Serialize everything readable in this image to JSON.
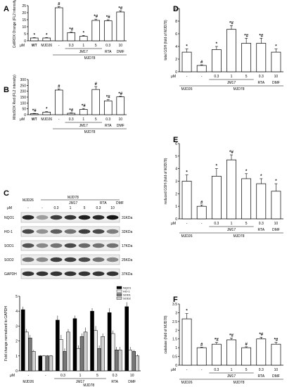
{
  "colors": {
    "bar": "#ffffff",
    "axis": "#000000",
    "blot_band": "#1a1a1a",
    "blot_bg": "#ececec"
  },
  "annotation_marks": {
    "sig_star": "*",
    "sig_hash": "#",
    "sig_both": "*#"
  },
  "treatment_row": {
    "unit": "μM",
    "doses": [
      "-",
      "-",
      "0.3",
      "1",
      "5",
      "0.3",
      "10"
    ],
    "groups": [
      "MJD26",
      "MJD78",
      "JM17",
      "RTA",
      "DMF"
    ]
  },
  "panel_labels": [
    "A",
    "B",
    "C",
    "D",
    "E",
    "F"
  ],
  "chart_data": [
    {
      "panel": "A",
      "type": "bar",
      "categories": [
        "WT",
        "MJD26",
        "MJD78",
        "JM17 0.3",
        "JM17 1",
        "JM17 5",
        "RTA 0.3",
        "DMF 10"
      ],
      "values": [
        2,
        2,
        23.5,
        5.8,
        3.2,
        14.5,
        14.2,
        20.5
      ],
      "errors": [
        0.3,
        0.3,
        0.8,
        0.5,
        0.6,
        0.9,
        0.8,
        0.8
      ],
      "annotations": [
        "*",
        "*",
        "#",
        "*#",
        "*",
        "*#",
        "*#",
        "*#"
      ],
      "ylabel": "CellROX Orange (FL2 intensity)",
      "ylim": [
        0,
        25
      ],
      "yticks": [
        0,
        5,
        10,
        15,
        20,
        25
      ],
      "xlabels": [
        "WT",
        "MJD26",
        "",
        "0.3",
        "1",
        "5",
        "0.3",
        "10"
      ]
    },
    {
      "panel": "B",
      "type": "bar",
      "categories": [
        "WT",
        "MJD26",
        "MJD78",
        "JM17 0.3",
        "JM17 1",
        "JM17 5",
        "RTA 0.3",
        "DMF 10"
      ],
      "values": [
        8,
        22,
        210,
        12,
        45,
        215,
        118,
        152
      ],
      "errors": [
        3,
        4,
        10,
        4,
        8,
        25,
        10,
        5
      ],
      "annotations": [
        "*#",
        "*",
        "#",
        "*#",
        "*#",
        "#",
        "*#",
        "*#"
      ],
      "ylabel": "MitoSOX Red (FL2 intensity)",
      "ylim": [
        0,
        300
      ],
      "yticks": [
        0,
        50,
        100,
        150,
        200,
        250,
        300
      ],
      "xlabels": [
        "WT",
        "MJD26",
        "",
        "0.3",
        "1",
        "5",
        "0.3",
        "10"
      ]
    },
    {
      "panel": "C",
      "type": "bar",
      "categories": [
        "MJD26",
        "MJD78",
        "JM17 0.3",
        "JM17 1",
        "JM17 5",
        "RTA 0.3",
        "DMF 10"
      ],
      "series": [
        {
          "name": "NQO1",
          "values": [
            4.1,
            1.0,
            3.4,
            3.5,
            4.0,
            3.9,
            4.3
          ],
          "errors": [
            0.2,
            0.05,
            0.3,
            0.2,
            0.2,
            0.3,
            0.3
          ],
          "fill": "#000000"
        },
        {
          "name": "HO-1",
          "values": [
            2.6,
            1.0,
            2.1,
            1.5,
            2.7,
            2.5,
            1.4
          ],
          "errors": [
            0.2,
            0.05,
            0.3,
            0.2,
            0.3,
            0.2,
            0.2
          ],
          "fill": "#f0f0f0"
        },
        {
          "name": "SOD1",
          "values": [
            2.2,
            1.0,
            1.3,
            2.3,
            1.5,
            1.4,
            1.3
          ],
          "errors": [
            0.2,
            0.05,
            0.2,
            0.2,
            0.2,
            0.2,
            0.1
          ],
          "fill": "#777777"
        },
        {
          "name": "SOD2",
          "values": [
            1.3,
            1.0,
            2.6,
            2.6,
            2.3,
            1.4,
            1.0
          ],
          "errors": [
            0.1,
            0.05,
            0.2,
            0.3,
            0.2,
            0.2,
            0.1
          ],
          "fill": "#cfcfcf"
        }
      ],
      "ylabel": "Fold change normalized to GAPDH",
      "ylim": [
        0,
        5
      ],
      "yticks": [
        0,
        1,
        2,
        3,
        4,
        5
      ],
      "xlabels": [
        "-",
        "-",
        "0.3",
        "1",
        "5",
        "0.3",
        "10"
      ]
    },
    {
      "panel": "D",
      "type": "bar",
      "categories": [
        "MJD26",
        "MJD78",
        "JM17 0.3",
        "JM17 1",
        "JM17 5",
        "RTA 0.3",
        "DMF 10"
      ],
      "values": [
        3.1,
        1.0,
        3.5,
        6.7,
        4.5,
        4.5,
        3.1
      ],
      "errors": [
        0.5,
        0.1,
        0.5,
        0.6,
        0.8,
        0.8,
        0.5
      ],
      "annotations": [
        "*",
        "#",
        "*",
        "*#",
        "*#",
        "*#",
        "*"
      ],
      "ylabel": "total GSH (fold of MJD78)",
      "ylim": [
        0,
        10
      ],
      "yticks": [
        0,
        2,
        4,
        6,
        8,
        10
      ],
      "xlabels": [
        "-",
        "-",
        "0.3",
        "1",
        "5",
        "0.3",
        "10"
      ]
    },
    {
      "panel": "E",
      "type": "bar",
      "categories": [
        "MJD26",
        "MJD78",
        "JM17 0.3",
        "JM17 1",
        "JM17 5",
        "RTA 0.3",
        "DMF 10"
      ],
      "values": [
        3.0,
        1.0,
        3.4,
        4.7,
        3.2,
        2.8,
        2.2
      ],
      "errors": [
        0.5,
        0.1,
        0.6,
        0.4,
        0.4,
        0.4,
        0.6
      ],
      "annotations": [
        "*",
        "#",
        "*",
        "*#",
        "*",
        "*",
        "*"
      ],
      "ylabel": "reduced GSH (fold of MJD78)",
      "ylim": [
        0,
        6
      ],
      "yticks": [
        0,
        1,
        2,
        3,
        4,
        5,
        6
      ],
      "xlabels": [
        "-",
        "-",
        "0.3",
        "1",
        "5",
        "0.3",
        "10"
      ]
    },
    {
      "panel": "F",
      "type": "bar",
      "categories": [
        "MJD26",
        "MJD78",
        "JM17 0.3",
        "JM17 1",
        "JM17 5",
        "RTA 0.3",
        "DMF 10"
      ],
      "values": [
        2.65,
        1.0,
        1.2,
        1.45,
        1.0,
        1.5,
        1.2
      ],
      "errors": [
        0.3,
        0.03,
        0.1,
        0.1,
        0.05,
        0.1,
        0.1
      ],
      "annotations": [
        "*",
        "#",
        "*#",
        "*#",
        "#",
        "*#",
        "*#"
      ],
      "ylabel": "catalase (fold of MJD78)",
      "ylim": [
        0,
        3.5
      ],
      "yticks": [
        0.0,
        0.5,
        1.0,
        1.5,
        2.0,
        2.5,
        3.0,
        3.5
      ],
      "xlabels": [
        "-",
        "-",
        "0.3",
        "1",
        "5",
        "0.3",
        "10"
      ]
    }
  ],
  "blot": {
    "header_groups": [
      "MJD26",
      "MJD78"
    ],
    "header_sub": [
      "JM17",
      "RTA",
      "DMF"
    ],
    "unit": "μM",
    "doses": [
      "-",
      "-",
      "0.3",
      "1",
      "5",
      "0.3",
      "10"
    ],
    "rows": [
      {
        "label": "NQO1",
        "size": "31KDa",
        "intensity": [
          0.9,
          0.35,
          0.8,
          0.85,
          0.95,
          0.9,
          1.0
        ]
      },
      {
        "label": "HO-1",
        "size": "32KDa",
        "intensity": [
          0.75,
          0.4,
          0.65,
          0.55,
          0.8,
          0.75,
          0.5
        ]
      },
      {
        "label": "SOD1",
        "size": "17KDa",
        "intensity": [
          0.7,
          0.45,
          0.55,
          0.75,
          0.6,
          0.55,
          0.55
        ]
      },
      {
        "label": "SOD2",
        "size": "25KDa",
        "intensity": [
          0.55,
          0.45,
          0.8,
          0.8,
          0.75,
          0.55,
          0.45
        ]
      },
      {
        "label": "GAPDH",
        "size": "37KDa",
        "intensity": [
          0.85,
          0.85,
          0.85,
          0.85,
          0.85,
          0.85,
          0.85
        ]
      }
    ]
  }
}
